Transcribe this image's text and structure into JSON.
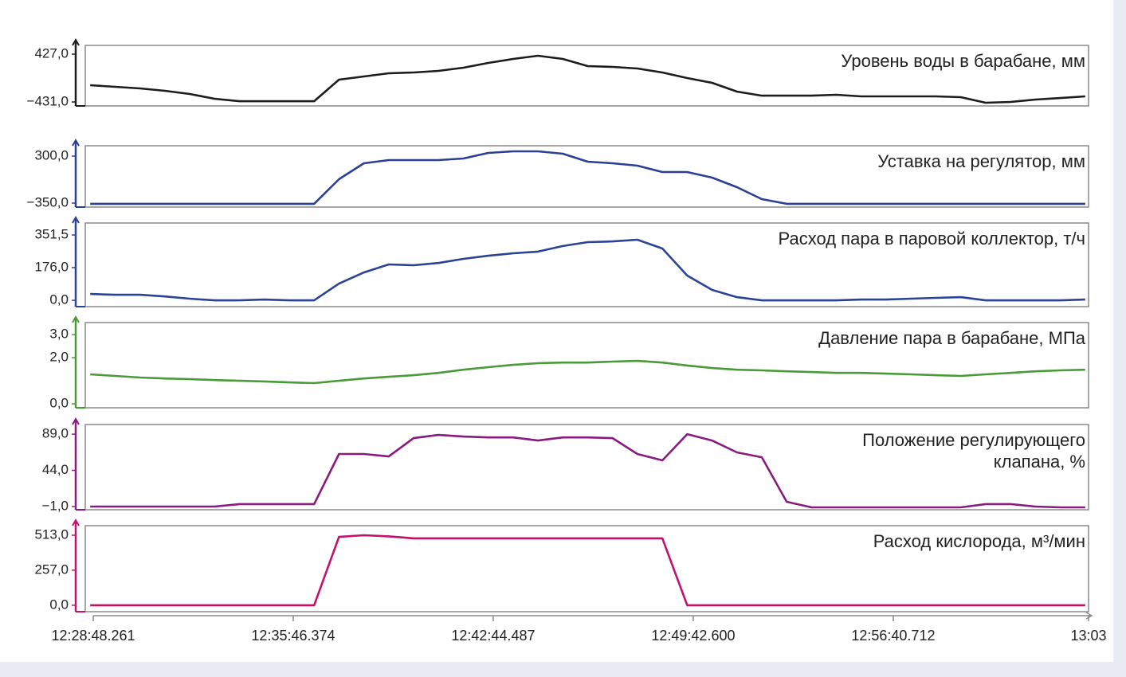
{
  "chart_data": [
    {
      "type": "line",
      "title": "Уровень воды в барабане, мм",
      "color": "#1c1c1c",
      "ylim": [
        -502,
        584
      ],
      "yticks": [
        {
          "value": -431,
          "label": "−431,0"
        },
        {
          "value": 427,
          "label": "427,0"
        }
      ],
      "xlim": [
        44911.6,
        47009
      ],
      "x": [
        44922,
        44974,
        45026,
        45078,
        45130,
        45182,
        45234,
        45286,
        45338,
        45390,
        45442,
        45494,
        45546,
        45598,
        45650,
        45702,
        45754,
        45806,
        45858,
        45910,
        45962,
        46014,
        46066,
        46118,
        46170,
        46222,
        46274,
        46326,
        46378,
        46430,
        46482,
        46534,
        46586,
        46638,
        46690,
        46742,
        46794,
        46846,
        46898,
        46950,
        47002
      ],
      "values": [
        -131,
        -159,
        -188,
        -231,
        -288,
        -374,
        -417,
        -417,
        -417,
        -417,
        -31,
        27,
        84,
        98,
        127,
        184,
        270,
        341,
        398,
        341,
        213,
        198,
        170,
        98,
        -2,
        -88,
        -245,
        -317,
        -317,
        -317,
        -302,
        -331,
        -331,
        -331,
        -331,
        -345,
        -445,
        -431,
        -388,
        -360,
        -331
      ]
    },
    {
      "type": "line",
      "title": "Уставка на регулятор, мм",
      "color": "#2b3f94",
      "ylim": [
        -405,
        443
      ],
      "yticks": [
        {
          "value": -350,
          "label": "−350,0"
        },
        {
          "value": 300,
          "label": "300,0"
        }
      ],
      "xlim": [
        44911.6,
        47009
      ],
      "x": [
        44922,
        44974,
        45026,
        45078,
        45130,
        45182,
        45234,
        45286,
        45338,
        45390,
        45442,
        45494,
        45546,
        45598,
        45650,
        45702,
        45754,
        45806,
        45858,
        45910,
        45962,
        46014,
        46066,
        46118,
        46170,
        46222,
        46274,
        46326,
        46378,
        46430,
        46482,
        46534,
        46586,
        46638,
        46690,
        46742,
        46794,
        46846,
        46898,
        46950,
        47002
      ],
      "values": [
        -360,
        -360,
        -360,
        -360,
        -360,
        -360,
        -360,
        -360,
        -360,
        -360,
        -20,
        201,
        245,
        245,
        245,
        267,
        344,
        366,
        366,
        333,
        223,
        201,
        168,
        80,
        80,
        2,
        -130,
        -295,
        -360,
        -360,
        -360,
        -360,
        -360,
        -360,
        -360,
        -360,
        -360,
        -360,
        -360,
        -360,
        -360
      ]
    },
    {
      "type": "line",
      "title": "Расход пара в паровой коллектор, т/ч",
      "color": "#2a4396",
      "ylim": [
        -34,
        416
      ],
      "yticks": [
        {
          "value": 0,
          "label": "0,0"
        },
        {
          "value": 176,
          "label": "176,0"
        },
        {
          "value": 351.5,
          "label": "351,5"
        }
      ],
      "xlim": [
        44911.6,
        47009
      ],
      "x": [
        44922,
        44974,
        45026,
        45078,
        45130,
        45182,
        45234,
        45286,
        45338,
        45390,
        45442,
        45494,
        45546,
        45598,
        45650,
        45702,
        45754,
        45806,
        45858,
        45910,
        45962,
        46014,
        46066,
        46118,
        46170,
        46222,
        46274,
        46326,
        46378,
        46430,
        46482,
        46534,
        46586,
        46638,
        46690,
        46742,
        46794,
        46846,
        46898,
        46950,
        47002
      ],
      "values": [
        34,
        30,
        30,
        21,
        9,
        0,
        0,
        4,
        0,
        0,
        90,
        150,
        193,
        189,
        201,
        223,
        240,
        253,
        262,
        292,
        313,
        317,
        326,
        279,
        133,
        56,
        17,
        0,
        0,
        0,
        0,
        4,
        4,
        9,
        13,
        17,
        0,
        0,
        0,
        0,
        4
      ]
    },
    {
      "type": "line",
      "title": "Давление пара в барабане, МПа",
      "color": "#4a9a3a",
      "ylim": [
        -0.17,
        3.52
      ],
      "yticks": [
        {
          "value": 0,
          "label": "0,0"
        },
        {
          "value": 2,
          "label": "2,0"
        },
        {
          "value": 3,
          "label": "3,0"
        }
      ],
      "xlim": [
        44911.6,
        47009
      ],
      "x": [
        44922,
        44974,
        45026,
        45078,
        45130,
        45182,
        45234,
        45286,
        45338,
        45390,
        45442,
        45494,
        45546,
        45598,
        45650,
        45702,
        45754,
        45806,
        45858,
        45910,
        45962,
        46014,
        46066,
        46118,
        46170,
        46222,
        46274,
        46326,
        46378,
        46430,
        46482,
        46534,
        46586,
        46638,
        46690,
        46742,
        46794,
        46846,
        46898,
        46950,
        47002
      ],
      "values": [
        1.28,
        1.21,
        1.14,
        1.1,
        1.07,
        1.03,
        1.0,
        0.97,
        0.93,
        0.9,
        1.0,
        1.1,
        1.17,
        1.24,
        1.34,
        1.48,
        1.59,
        1.69,
        1.76,
        1.79,
        1.79,
        1.83,
        1.86,
        1.79,
        1.66,
        1.55,
        1.48,
        1.45,
        1.41,
        1.38,
        1.34,
        1.34,
        1.31,
        1.28,
        1.24,
        1.21,
        1.28,
        1.34,
        1.41,
        1.45,
        1.48
      ]
    },
    {
      "type": "line",
      "title": [
        "Положение регулирующего",
        "клапана, %"
      ],
      "color": "#8b1a7e",
      "ylim": [
        -5,
        101
      ],
      "yticks": [
        {
          "value": -1,
          "label": "−1,0"
        },
        {
          "value": 44,
          "label": "44,0"
        },
        {
          "value": 89,
          "label": "89,0"
        }
      ],
      "xlim": [
        44911.6,
        47009
      ],
      "x": [
        44922,
        44974,
        45026,
        45078,
        45130,
        45182,
        45234,
        45286,
        45338,
        45390,
        45442,
        45494,
        45546,
        45598,
        45650,
        45702,
        45754,
        45806,
        45858,
        45910,
        45962,
        46014,
        46066,
        46118,
        46170,
        46222,
        46274,
        46326,
        46378,
        46430,
        46482,
        46534,
        46586,
        46638,
        46690,
        46742,
        46794,
        46846,
        46898,
        46950,
        47002
      ],
      "values": [
        -1,
        -1,
        -1,
        -1,
        -1,
        -1,
        2,
        2,
        2,
        2,
        64.3,
        64.3,
        61.3,
        84.1,
        88,
        86,
        85,
        85,
        81.1,
        85,
        85,
        84.1,
        64.3,
        56.4,
        89,
        81.1,
        66.3,
        60.3,
        4.9,
        -2,
        -2,
        -2,
        -2,
        -2,
        -2,
        -2,
        2,
        2,
        -1,
        -2,
        -2
      ]
    },
    {
      "type": "line",
      "title": "Расход кислорода, м³/мин",
      "color": "#c4106a",
      "ylim": [
        -47,
        583
      ],
      "yticks": [
        {
          "value": 0,
          "label": "0,0"
        },
        {
          "value": 257,
          "label": "257,0"
        },
        {
          "value": 513,
          "label": "513,0"
        }
      ],
      "xlim": [
        44911.6,
        47009
      ],
      "xticks": [
        {
          "value": 44928.261,
          "label": "12:28:48.261"
        },
        {
          "value": 45346.374,
          "label": "12:35:46.374"
        },
        {
          "value": 45764.487,
          "label": "12:42:44.487"
        },
        {
          "value": 46182.6,
          "label": "12:49:42.600"
        },
        {
          "value": 46600.712,
          "label": "12:56:40.712"
        },
        {
          "value": 47009,
          "label": "13:03"
        }
      ],
      "x": [
        44922,
        44974,
        45026,
        45078,
        45130,
        45182,
        45234,
        45286,
        45338,
        45390,
        45442,
        45494,
        45546,
        45598,
        45650,
        45702,
        45754,
        45806,
        45858,
        45910,
        45962,
        46014,
        46066,
        46118,
        46170,
        46222,
        46274,
        46326,
        46378,
        46430,
        46482,
        46534,
        46586,
        46638,
        46690,
        46742,
        46794,
        46846,
        46898,
        46950,
        47002
      ],
      "values": [
        0,
        0,
        0,
        0,
        0,
        0,
        0,
        0,
        0,
        0,
        501,
        513,
        505,
        490,
        490,
        490,
        490,
        490,
        490,
        490,
        490,
        490,
        490,
        490,
        0,
        0,
        0,
        0,
        0,
        0,
        0,
        0,
        0,
        0,
        0,
        0,
        0,
        0,
        0,
        0,
        0
      ]
    }
  ]
}
